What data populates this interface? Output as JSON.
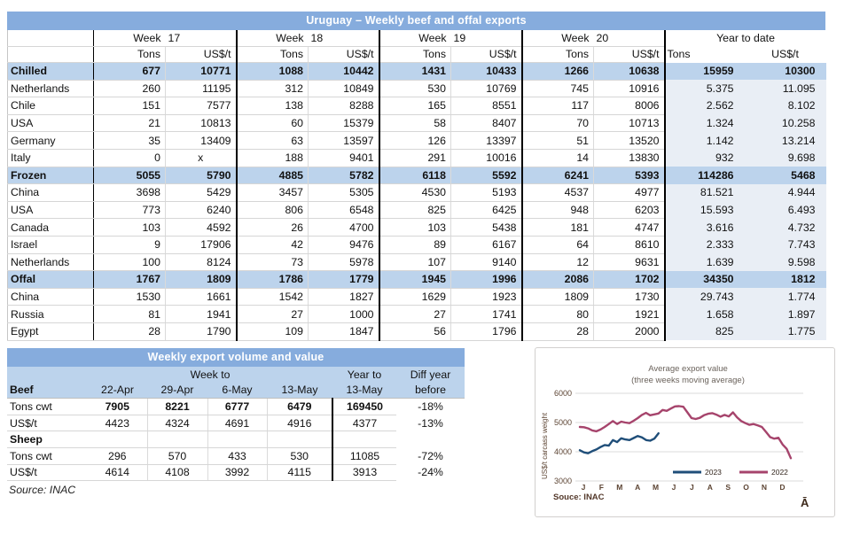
{
  "main_table": {
    "title": "Uruguay – Weekly beef and offal exports",
    "weeks": [
      {
        "label": "Week",
        "num": "17"
      },
      {
        "label": "Week",
        "num": "18"
      },
      {
        "label": "Week",
        "num": "19"
      },
      {
        "label": "Week",
        "num": "20"
      }
    ],
    "ytd_label": "Year to date",
    "col_tons": "Tons",
    "col_usd": "US$/t",
    "rows": [
      {
        "label": "Chilled",
        "section": true,
        "cells": [
          "677",
          "10771",
          "1088",
          "10442",
          "1431",
          "10433",
          "1266",
          "10638",
          "15959",
          "10300"
        ]
      },
      {
        "label": "Netherlands",
        "section": false,
        "cells": [
          "260",
          "11195",
          "312",
          "10849",
          "530",
          "10769",
          "745",
          "10916",
          "5.375",
          "11.095"
        ]
      },
      {
        "label": "Chile",
        "section": false,
        "cells": [
          "151",
          "7577",
          "138",
          "8288",
          "165",
          "8551",
          "117",
          "8006",
          "2.562",
          "8.102"
        ]
      },
      {
        "label": "USA",
        "section": false,
        "cells": [
          "21",
          "10813",
          "60",
          "15379",
          "58",
          "8407",
          "70",
          "10713",
          "1.324",
          "10.258"
        ]
      },
      {
        "label": "Germany",
        "section": false,
        "cells": [
          "35",
          "13409",
          "63",
          "13597",
          "126",
          "13397",
          "51",
          "13520",
          "1.142",
          "13.214"
        ]
      },
      {
        "label": "Italy",
        "section": false,
        "cells": [
          "0",
          "x",
          "188",
          "9401",
          "291",
          "10016",
          "14",
          "13830",
          "932",
          "9.698"
        ]
      },
      {
        "label": "Frozen",
        "section": true,
        "cells": [
          "5055",
          "5790",
          "4885",
          "5782",
          "6118",
          "5592",
          "6241",
          "5393",
          "114286",
          "5468"
        ]
      },
      {
        "label": "China",
        "section": false,
        "cells": [
          "3698",
          "5429",
          "3457",
          "5305",
          "4530",
          "5193",
          "4537",
          "4977",
          "81.521",
          "4.944"
        ]
      },
      {
        "label": "USA",
        "section": false,
        "cells": [
          "773",
          "6240",
          "806",
          "6548",
          "825",
          "6425",
          "948",
          "6203",
          "15.593",
          "6.493"
        ]
      },
      {
        "label": "Canada",
        "section": false,
        "cells": [
          "103",
          "4592",
          "26",
          "4700",
          "103",
          "5438",
          "181",
          "4747",
          "3.616",
          "4.732"
        ]
      },
      {
        "label": "Israel",
        "section": false,
        "cells": [
          "9",
          "17906",
          "42",
          "9476",
          "89",
          "6167",
          "64",
          "8610",
          "2.333",
          "7.743"
        ]
      },
      {
        "label": "Netherlands",
        "section": false,
        "cells": [
          "100",
          "8124",
          "73",
          "5978",
          "107",
          "9140",
          "12",
          "9631",
          "1.639",
          "9.598"
        ]
      },
      {
        "label": "Offal",
        "section": true,
        "cells": [
          "1767",
          "1809",
          "1786",
          "1779",
          "1945",
          "1996",
          "2086",
          "1702",
          "34350",
          "1812"
        ]
      },
      {
        "label": "China",
        "section": false,
        "cells": [
          "1530",
          "1661",
          "1542",
          "1827",
          "1629",
          "1923",
          "1809",
          "1730",
          "29.743",
          "1.774"
        ]
      },
      {
        "label": "Russia",
        "section": false,
        "cells": [
          "81",
          "1941",
          "27",
          "1000",
          "27",
          "1741",
          "80",
          "1921",
          "1.658",
          "1.897"
        ]
      },
      {
        "label": "Egypt",
        "section": false,
        "cells": [
          "28",
          "1790",
          "109",
          "1847",
          "56",
          "1796",
          "28",
          "2000",
          "825",
          "1.775"
        ]
      }
    ]
  },
  "weekly_table": {
    "title": "Weekly export volume and value",
    "group_headers": {
      "week_to": "Week to",
      "year_to": "Year to",
      "diff_year": "Diff year"
    },
    "header": {
      "label": "Beef",
      "cols": [
        "22-Apr",
        "29-Apr",
        "6-May",
        "13-May",
        "13-May",
        "before"
      ]
    },
    "rows": [
      {
        "label": "Tons cwt",
        "section": false,
        "bold_values": true,
        "cells": [
          "7905",
          "8221",
          "6777",
          "6479",
          "169450",
          "-18%"
        ]
      },
      {
        "label": "US$/t",
        "section": false,
        "bold_values": false,
        "cells": [
          "4423",
          "4324",
          "4691",
          "4916",
          "4377",
          "-13%"
        ]
      },
      {
        "label": "Sheep",
        "section": true,
        "bold_values": false,
        "cells": [
          "",
          "",
          "",
          "",
          "",
          ""
        ]
      },
      {
        "label": "Tons cwt",
        "section": false,
        "bold_values": false,
        "cells": [
          "296",
          "570",
          "433",
          "530",
          "11085",
          "-72%"
        ]
      },
      {
        "label": "US$/t",
        "section": false,
        "bold_values": false,
        "cells": [
          "4614",
          "4108",
          "3992",
          "4115",
          "3913",
          "-24%"
        ]
      }
    ],
    "source": "Source: INAC"
  },
  "chart_data": {
    "type": "line",
    "title": "Average export  value",
    "subtitle": "(three weeks moving average)",
    "ylabel": "US$/t carcass weight",
    "xlabel": "",
    "yticks": [
      3000,
      4000,
      5000,
      6000
    ],
    "ylim": [
      3000,
      6000
    ],
    "grid": true,
    "legend_position": "bottom-inside",
    "x_tick_labels": [
      "J",
      "F",
      "M",
      "A",
      "M",
      "J",
      "J",
      "A",
      "S",
      "O",
      "N",
      "D"
    ],
    "source": "Souce: INAC",
    "watermark": "Ā",
    "colors": {
      "grid": "#DBDBDB",
      "tick_text": "#5C4433",
      "title_text": "#6B635C",
      "source_text": "#53382A"
    },
    "series": [
      {
        "name": "2023",
        "color": "#1F4E79",
        "values": [
          4050,
          3980,
          3950,
          4020,
          4080,
          4160,
          4230,
          4210,
          4400,
          4330,
          4460,
          4420,
          4400,
          4470,
          4540,
          4490,
          4400,
          4380,
          4450,
          4630
        ]
      },
      {
        "name": "2022",
        "color": "#A6446C",
        "values": [
          4850,
          4840,
          4800,
          4730,
          4700,
          4760,
          4850,
          4950,
          5050,
          4950,
          5030,
          5000,
          4980,
          5060,
          5150,
          5260,
          5330,
          5250,
          5280,
          5310,
          5430,
          5400,
          5480,
          5550,
          5560,
          5540,
          5350,
          5150,
          5120,
          5160,
          5250,
          5300,
          5320,
          5270,
          5200,
          5260,
          5210,
          5350,
          5180,
          5050,
          4980,
          4920,
          4950,
          4900,
          4850,
          4680,
          4500,
          4450,
          4480,
          4250,
          4100,
          3780
        ]
      }
    ]
  }
}
